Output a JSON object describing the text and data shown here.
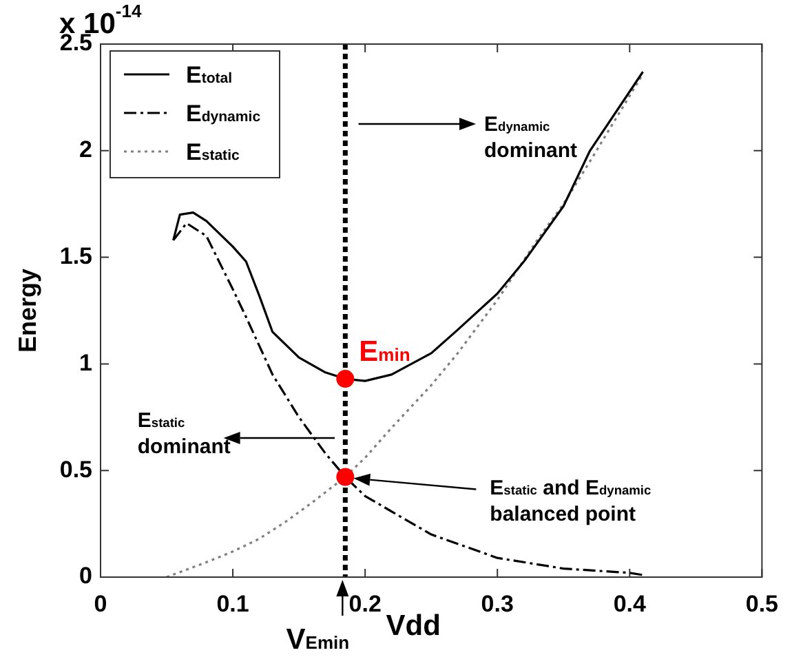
{
  "chart_data": {
    "type": "line",
    "xlabel": "Vdd",
    "ylabel": "Energy",
    "xlim": [
      0,
      0.5
    ],
    "xticks": [
      0,
      0.1,
      0.2,
      0.3,
      0.4,
      0.5
    ],
    "ylim": [
      0,
      2.5
    ],
    "yticks": [
      0,
      0.5,
      1,
      1.5,
      2,
      2.5
    ],
    "grid": false,
    "legend": "top left",
    "series": [
      {
        "name": "E$_{total}$",
        "color": "#000000",
        "line_style": "solid",
        "x": [
          0.055,
          0.06,
          0.07,
          0.08,
          0.1,
          0.11,
          0.12,
          0.13,
          0.15,
          0.17,
          0.185,
          0.2,
          0.22,
          0.25,
          0.27,
          0.3,
          0.32,
          0.35,
          0.37,
          0.41
        ],
        "values": [
          1.58,
          1.7,
          1.71,
          1.67,
          1.55,
          1.48,
          1.32,
          1.15,
          1.03,
          0.96,
          0.93,
          0.92,
          0.95,
          1.05,
          1.16,
          1.33,
          1.48,
          1.74,
          2.0,
          2.37
        ]
      },
      {
        "name": "E$_{dynamic}$",
        "color": "#000000",
        "line_style": "dashed",
        "x": [
          0.055,
          0.065,
          0.08,
          0.1,
          0.11,
          0.13,
          0.15,
          0.17,
          0.185,
          0.2,
          0.25,
          0.3,
          0.35,
          0.4,
          0.41
        ],
        "values": [
          1.58,
          1.66,
          1.6,
          1.35,
          1.22,
          0.95,
          0.75,
          0.58,
          0.47,
          0.38,
          0.2,
          0.09,
          0.04,
          0.02,
          0.01
        ]
      },
      {
        "name": "E$_{static}$",
        "color": "#808080",
        "line_style": "dotted",
        "x": [
          0.05,
          0.08,
          0.1,
          0.12,
          0.14,
          0.16,
          0.185,
          0.2,
          0.22,
          0.25,
          0.27,
          0.3,
          0.33,
          0.35,
          0.37,
          0.41
        ],
        "values": [
          0,
          0.07,
          0.12,
          0.18,
          0.26,
          0.35,
          0.47,
          0.56,
          0.7,
          0.9,
          1.05,
          1.3,
          1.58,
          1.75,
          1.95,
          2.36
        ]
      },
      {
        "type": "scatter",
        "color": "#ff0000",
        "marker": "circle",
        "x": [
          0.185,
          0.185
        ],
        "values": [
          0.93,
          0.47
        ]
      }
    ],
    "ref_lines": [
      {
        "axis": "x",
        "value": 0.185,
        "color": "#000000",
        "line_style": "dotted"
      }
    ],
    "annotations": [
      "x 10$^{-14}$",
      {
        "text": "E$_{min}$",
        "x": 0.185,
        "y": 0.93
      },
      "E$_{static}$ and E$_{dynamic}$\nbalanced point",
      "V$_{Emin}$",
      "E$_{dynamic}$\ndominant",
      "E$_{static}$\ndominant"
    ]
  }
}
